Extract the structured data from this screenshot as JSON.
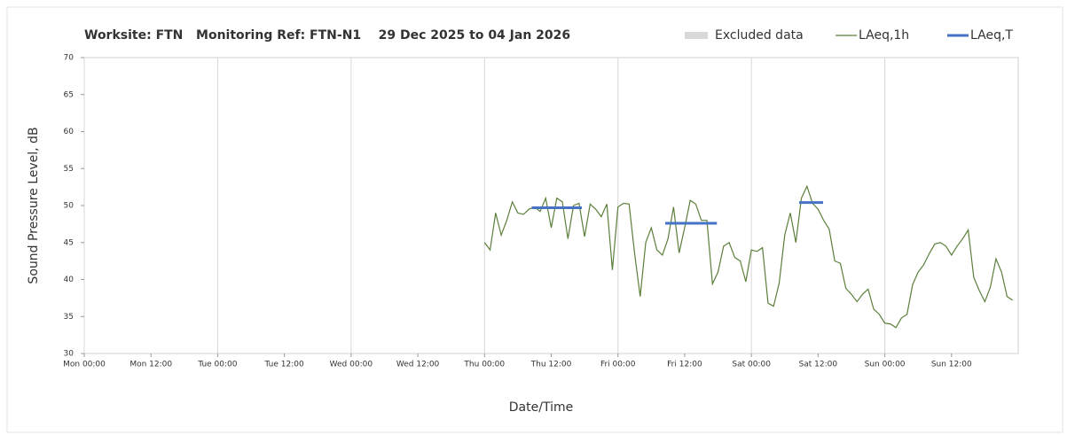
{
  "chart_data": {
    "type": "line",
    "title": "Worksite: FTN   Monitoring Ref: FTN-N1    29 Dec 2025 to 04 Jan 2026",
    "xlabel": "Date/Time",
    "ylabel": "Sound Pressure Level, dB",
    "xlim": [
      0,
      168
    ],
    "ylim": [
      30,
      70
    ],
    "xticks": [
      {
        "value": 0,
        "label": "Mon 00:00"
      },
      {
        "value": 12,
        "label": "Mon 12:00"
      },
      {
        "value": 24,
        "label": "Tue 00:00"
      },
      {
        "value": 36,
        "label": "Tue 12:00"
      },
      {
        "value": 48,
        "label": "Wed 00:00"
      },
      {
        "value": 60,
        "label": "Wed 12:00"
      },
      {
        "value": 72,
        "label": "Thu 00:00"
      },
      {
        "value": 84,
        "label": "Thu 12:00"
      },
      {
        "value": 96,
        "label": "Fri 00:00"
      },
      {
        "value": 108,
        "label": "Fri 12:00"
      },
      {
        "value": 120,
        "label": "Sat 00:00"
      },
      {
        "value": 132,
        "label": "Sat 12:00"
      },
      {
        "value": 144,
        "label": "Sun 00:00"
      },
      {
        "value": 156,
        "label": "Sun 12:00"
      }
    ],
    "yticks": [
      30,
      35,
      40,
      45,
      50,
      55,
      60,
      65,
      70
    ],
    "legend": "top-right",
    "excluded": {
      "name": "Excluded data",
      "color": "#d9d9d9"
    },
    "series": [
      {
        "name": "LAeq,1h",
        "color": "#5b7f3a",
        "x": [
          72,
          73,
          74,
          75,
          76,
          77,
          78,
          79,
          80,
          81,
          82,
          83,
          84,
          85,
          86,
          87,
          88,
          89,
          90,
          91,
          92,
          93,
          94,
          95,
          96,
          97,
          98,
          99,
          100,
          101,
          102,
          103,
          104,
          105,
          106,
          107,
          108,
          109,
          110,
          111,
          112,
          113,
          114,
          115,
          116,
          117,
          118,
          119,
          120,
          121,
          122,
          123,
          124,
          125,
          126,
          127,
          128,
          129,
          130,
          131,
          132,
          133,
          134,
          135,
          136,
          137,
          138,
          139,
          140,
          141,
          142,
          143,
          144,
          145,
          146,
          147,
          148,
          149,
          150,
          151,
          152,
          153,
          154,
          155,
          156,
          157,
          158,
          159,
          160,
          161,
          162,
          163,
          164,
          165,
          166,
          167
        ],
        "values": [
          45,
          44,
          49,
          46,
          48,
          50.5,
          49,
          48.8,
          49.5,
          49.8,
          49.2,
          51,
          47,
          51,
          50.5,
          45.5,
          50,
          50.3,
          45.8,
          50.2,
          49.5,
          48.5,
          50.2,
          41.3,
          49.8,
          50.3,
          50.2,
          43.5,
          37.7,
          45,
          47,
          44,
          43.3,
          45.5,
          49.8,
          43.6,
          47,
          50.7,
          50.2,
          48,
          48,
          39.4,
          41,
          44.5,
          45,
          43,
          42.5,
          39.7,
          44,
          43.8,
          44.3,
          36.8,
          36.4,
          39.5,
          46,
          49,
          45,
          51,
          52.6,
          50.3,
          49.5,
          48,
          46.8,
          42.5,
          42.2,
          38.8,
          38,
          37,
          38,
          38.7,
          36,
          35.3,
          34.1,
          34,
          33.5,
          34.8,
          35.3,
          39.3,
          41,
          42,
          43.5,
          44.8,
          45,
          44.5,
          43.3,
          44.5,
          45.5,
          46.7,
          40.3,
          38.5,
          37,
          39,
          42.8,
          41,
          37.7,
          37.2
        ]
      },
      {
        "name": "LAeq,T",
        "color": "#4472c4",
        "segments": [
          {
            "x": [
              80.5,
              89.5
            ],
            "value": 49.7
          },
          {
            "x": [
              104.5,
              113.8
            ],
            "value": 47.6
          },
          {
            "x": [
              128.6,
              132.9
            ],
            "value": 50.4
          }
        ]
      }
    ]
  }
}
